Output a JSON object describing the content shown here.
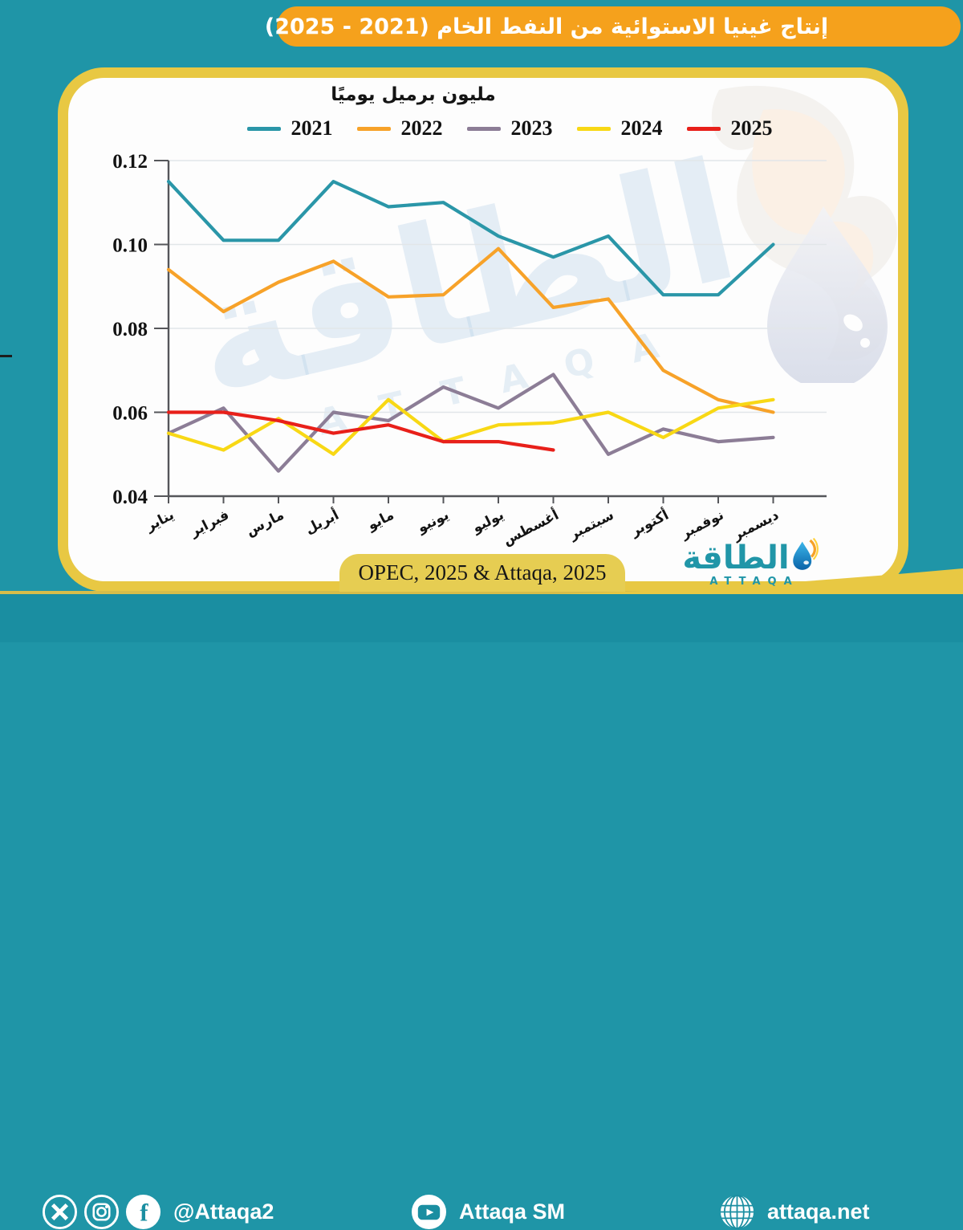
{
  "title": "إنتاج غينيا الاستوائية من النفط الخام (2021 - 2025)",
  "source_label": "OPEC, 2025 & Attaqa, 2025",
  "logo": {
    "arabic": "الطاقة",
    "latin": "ATTAQA"
  },
  "footer": {
    "handle": "@Attaqa2",
    "youtube_channel": "Attaqa SM",
    "website": "attaqa.net"
  },
  "colors": {
    "background": "#1f95a7",
    "footer_bar": "#1a8ea1",
    "gold_border": "#e8c843",
    "title_bar_orange": "#f5a11c",
    "source_pill_gold": "#e6cd52",
    "brand_teal": "#2196a8",
    "axis": "#55565a",
    "gridline": "#e2e6e9"
  },
  "chart_data": {
    "type": "line",
    "title": "مليون برميل يوميًا",
    "categories": [
      "يناير",
      "فبراير",
      "مارس",
      "أبريل",
      "مايو",
      "يونيو",
      "يوليو",
      "أغسطس",
      "سبتمبر",
      "أكتوبر",
      "نوفمبر",
      "ديسمبر"
    ],
    "series": [
      {
        "name": "2021",
        "color": "#2a96a8",
        "values": [
          0.115,
          0.101,
          0.101,
          0.115,
          0.109,
          0.11,
          0.102,
          0.097,
          0.102,
          0.088,
          0.088,
          0.1
        ]
      },
      {
        "name": "2022",
        "color": "#f7a229",
        "values": [
          0.094,
          0.084,
          0.091,
          0.096,
          0.0875,
          0.088,
          0.099,
          0.085,
          0.087,
          0.07,
          0.063,
          0.06
        ]
      },
      {
        "name": "2023",
        "color": "#8c7d96",
        "values": [
          0.055,
          0.061,
          0.046,
          0.06,
          0.058,
          0.066,
          0.061,
          0.069,
          0.05,
          0.056,
          0.053,
          0.054
        ]
      },
      {
        "name": "2024",
        "color": "#f8d815",
        "values": [
          0.055,
          0.051,
          0.0585,
          0.05,
          0.063,
          0.053,
          0.057,
          0.0575,
          0.06,
          0.054,
          0.061,
          0.063
        ]
      },
      {
        "name": "2025",
        "color": "#e8201a",
        "values": [
          0.06,
          0.06,
          0.058,
          0.055,
          0.057,
          0.053,
          0.053,
          0.051,
          null,
          null,
          null,
          null
        ]
      }
    ],
    "ylim": [
      0.04,
      0.12
    ],
    "yticks": [
      0.04,
      0.06,
      0.08,
      0.1,
      0.12
    ],
    "grid": true,
    "legend_position": "top",
    "xlabel": "",
    "ylabel": ""
  }
}
